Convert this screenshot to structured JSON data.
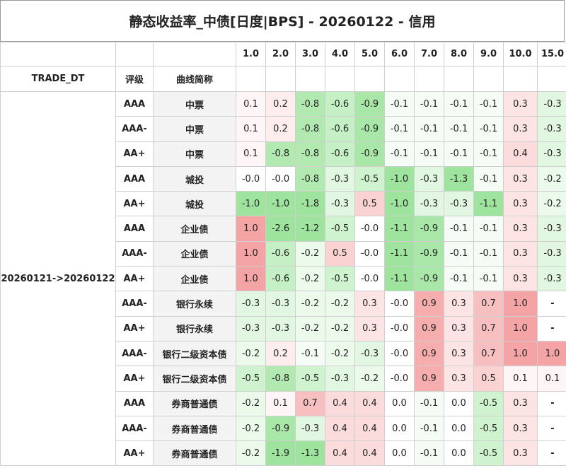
{
  "title": "静态收益率_中债[日度|BPS] - 20260122 - 信用",
  "chart_data": {
    "type": "heatmap",
    "title": "静态收益率_中债[日度|BPS] - 20260122 - 信用",
    "row_header_labels": [
      "TRADE_DT",
      "评级",
      "曲线简称"
    ],
    "trade_dt": "20260121->20260122",
    "tenors": [
      "1.0",
      "2.0",
      "3.0",
      "4.0",
      "5.0",
      "6.0",
      "7.0",
      "8.0",
      "9.0",
      "10.0",
      "15.0"
    ],
    "rows": [
      {
        "rating": "AAA",
        "curve": "中票",
        "values": [
          "0.1",
          "0.2",
          "-0.8",
          "-0.6",
          "-0.9",
          "-0.1",
          "-0.1",
          "-0.1",
          "-0.1",
          "0.3",
          "-0.3"
        ]
      },
      {
        "rating": "AAA-",
        "curve": "中票",
        "values": [
          "0.1",
          "0.2",
          "-0.8",
          "-0.6",
          "-0.9",
          "-0.1",
          "-0.1",
          "-0.1",
          "-0.1",
          "0.3",
          "-0.3"
        ]
      },
      {
        "rating": "AA+",
        "curve": "中票",
        "values": [
          "0.1",
          "-0.8",
          "-0.8",
          "-0.6",
          "-0.9",
          "-0.1",
          "-0.1",
          "-0.1",
          "-0.1",
          "0.4",
          "-0.3"
        ]
      },
      {
        "rating": "AAA",
        "curve": "城投",
        "values": [
          "-0.0",
          "-0.0",
          "-0.8",
          "-0.3",
          "-0.5",
          "-1.0",
          "-0.3",
          "-1.3",
          "-0.1",
          "0.3",
          "-0.2"
        ]
      },
      {
        "rating": "AA+",
        "curve": "城投",
        "values": [
          "-1.0",
          "-1.0",
          "-1.8",
          "-0.3",
          "0.5",
          "-1.0",
          "-0.3",
          "-0.3",
          "-1.1",
          "0.3",
          "-0.2"
        ]
      },
      {
        "rating": "AAA",
        "curve": "企业债",
        "values": [
          "1.0",
          "-2.6",
          "-1.2",
          "-0.5",
          "-0.0",
          "-1.1",
          "-0.9",
          "-0.1",
          "-0.1",
          "0.3",
          "-0.3"
        ]
      },
      {
        "rating": "AAA-",
        "curve": "企业债",
        "values": [
          "1.0",
          "-0.6",
          "-0.2",
          "0.5",
          "-0.0",
          "-1.1",
          "-0.9",
          "-0.1",
          "-0.1",
          "0.3",
          "-0.3"
        ]
      },
      {
        "rating": "AA+",
        "curve": "企业债",
        "values": [
          "1.0",
          "-0.6",
          "-0.2",
          "-0.5",
          "-0.0",
          "-1.1",
          "-0.9",
          "-0.1",
          "-0.1",
          "0.3",
          "-0.3"
        ]
      },
      {
        "rating": "AAA-",
        "curve": "银行永续",
        "values": [
          "-0.3",
          "-0.3",
          "-0.2",
          "-0.2",
          "0.3",
          "-0.0",
          "0.9",
          "0.3",
          "0.7",
          "1.0",
          "-"
        ]
      },
      {
        "rating": "AA+",
        "curve": "银行永续",
        "values": [
          "-0.3",
          "-0.3",
          "-0.2",
          "-0.2",
          "0.3",
          "-0.0",
          "0.9",
          "0.3",
          "0.7",
          "1.0",
          "-"
        ]
      },
      {
        "rating": "AAA-",
        "curve": "银行二级资本债",
        "values": [
          "-0.2",
          "0.2",
          "-0.1",
          "-0.2",
          "-0.3",
          "-0.0",
          "0.9",
          "0.3",
          "0.7",
          "1.0",
          "1.0"
        ]
      },
      {
        "rating": "AA+",
        "curve": "银行二级资本债",
        "values": [
          "-0.5",
          "-0.8",
          "-0.5",
          "-0.3",
          "-0.2",
          "-0.0",
          "0.9",
          "0.3",
          "0.5",
          "0.1",
          "0.1"
        ]
      },
      {
        "rating": "AAA",
        "curve": "券商普通债",
        "values": [
          "-0.2",
          "0.1",
          "0.7",
          "0.4",
          "0.4",
          "0.0",
          "-0.1",
          "0.0",
          "-0.5",
          "0.3",
          "-"
        ]
      },
      {
        "rating": "AAA-",
        "curve": "券商普通债",
        "values": [
          "-0.2",
          "-0.9",
          "-0.3",
          "0.4",
          "0.4",
          "0.0",
          "-0.1",
          "0.0",
          "-0.5",
          "0.3",
          "-"
        ]
      },
      {
        "rating": "AA+",
        "curve": "券商普通债",
        "values": [
          "-0.2",
          "-1.9",
          "-1.3",
          "0.4",
          "0.4",
          "0.0",
          "-0.1",
          "0.0",
          "-0.5",
          "0.3",
          "-"
        ]
      }
    ],
    "colors": {
      "positive": "#f4a4a4",
      "negative": "#9ee49e",
      "neutral": "#ffffff",
      "header_bg": "#ffffff",
      "curve_bg": "#f3f3f3"
    }
  }
}
